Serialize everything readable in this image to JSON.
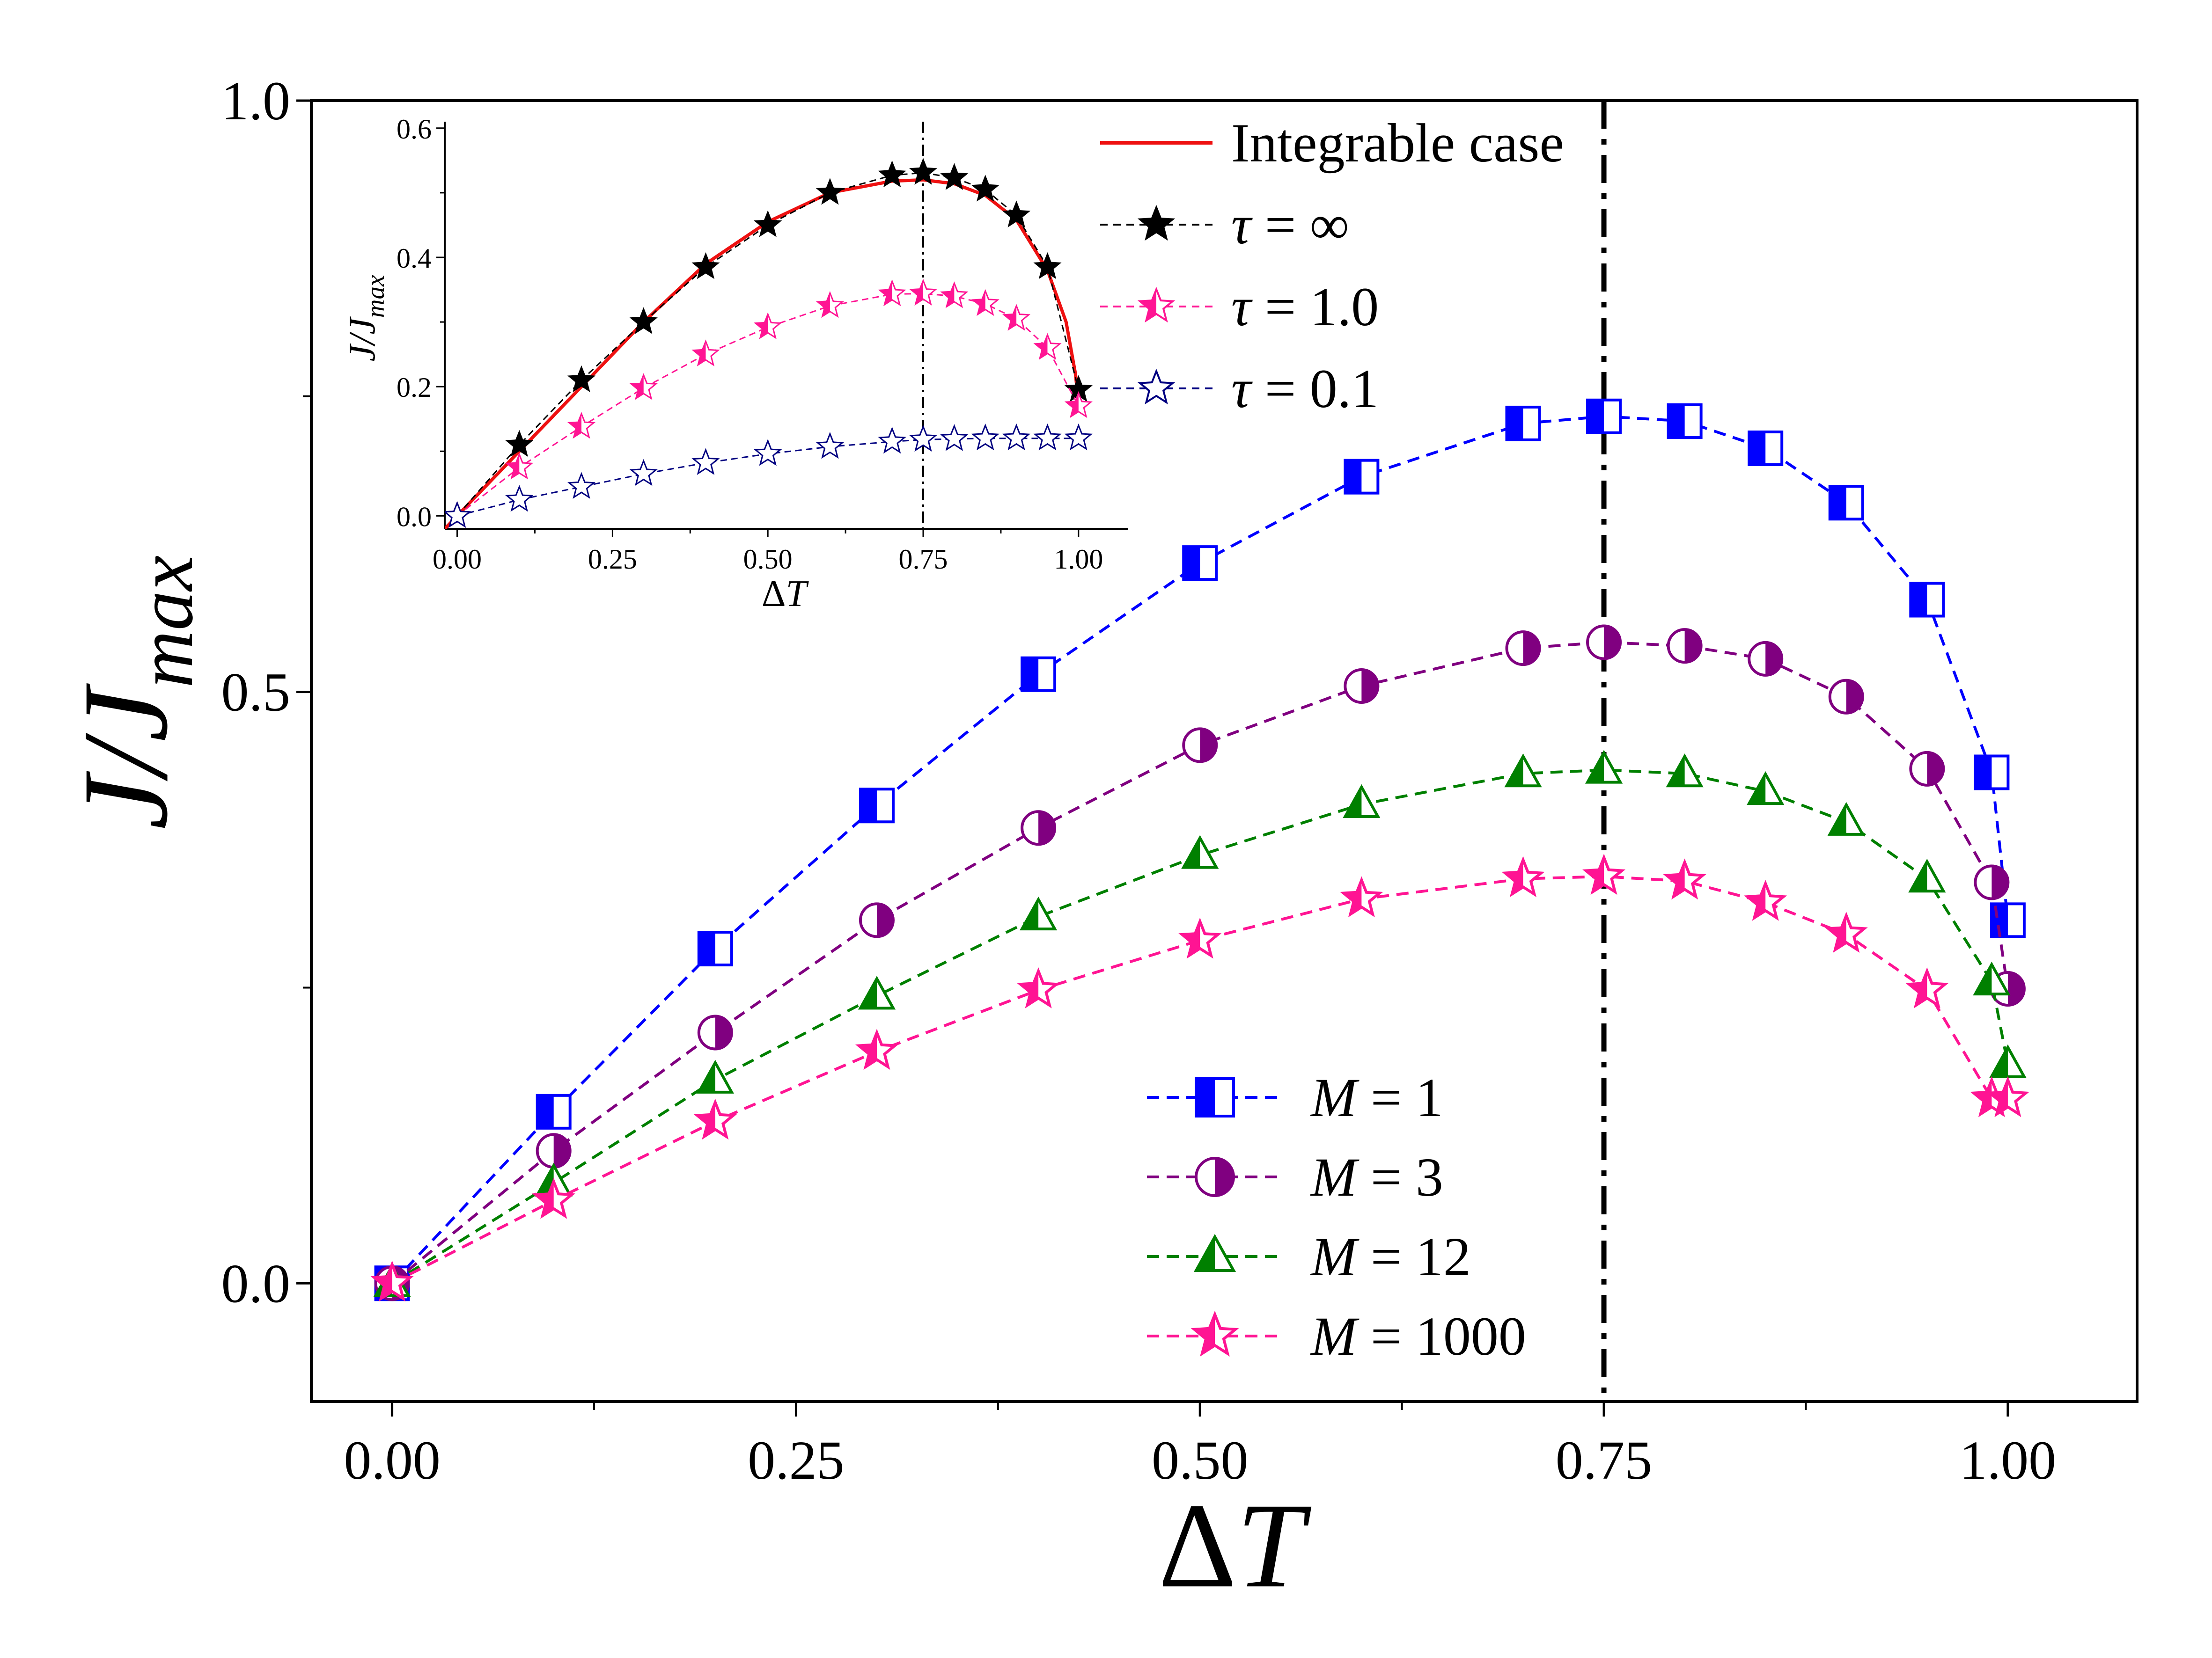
{
  "chart_data": [
    {
      "type": "line",
      "role": "main",
      "xlabel_symbol": "Δ",
      "xlabel_var": "T",
      "ylabel_main": "J/J",
      "ylabel_sub": "max",
      "xlim": [
        -0.05,
        1.08
      ],
      "ylim": [
        -0.1,
        1.0
      ],
      "xticks": [
        0.0,
        0.25,
        0.5,
        0.75,
        1.0
      ],
      "xtick_labels": [
        "0.00",
        "0.25",
        "0.50",
        "0.75",
        "1.00"
      ],
      "yticks": [
        0.0,
        0.5,
        1.0
      ],
      "ytick_labels": [
        "0.0",
        "0.5",
        "1.0"
      ],
      "vline_x": 0.75,
      "legend_position": "lower-right",
      "series": [
        {
          "name": "M = 1",
          "label_var": "M",
          "label_rest": " = 1",
          "color": "#0000ff",
          "marker": "half-square",
          "x": [
            0.0,
            0.1,
            0.2,
            0.3,
            0.4,
            0.5,
            0.6,
            0.7,
            0.75,
            0.8,
            0.85,
            0.9,
            0.95,
            0.99,
            1.0
          ],
          "y": [
            0.0,
            0.145,
            0.283,
            0.404,
            0.515,
            0.609,
            0.682,
            0.727,
            0.733,
            0.729,
            0.706,
            0.66,
            0.578,
            0.432,
            0.307
          ]
        },
        {
          "name": "M = 3",
          "label_var": "M",
          "label_rest": " = 3",
          "color": "#800080",
          "marker": "half-circle",
          "x": [
            0.0,
            0.1,
            0.2,
            0.3,
            0.4,
            0.5,
            0.6,
            0.7,
            0.75,
            0.8,
            0.85,
            0.9,
            0.95,
            0.99,
            1.0
          ],
          "y": [
            0.0,
            0.112,
            0.212,
            0.307,
            0.385,
            0.455,
            0.505,
            0.537,
            0.542,
            0.539,
            0.528,
            0.496,
            0.435,
            0.339,
            0.249
          ]
        },
        {
          "name": "M = 12",
          "label_var": "M",
          "label_rest": " = 12",
          "color": "#008000",
          "marker": "half-triangle",
          "x": [
            0.0,
            0.1,
            0.2,
            0.3,
            0.4,
            0.5,
            0.6,
            0.7,
            0.75,
            0.8,
            0.85,
            0.9,
            0.95,
            0.99,
            1.0
          ],
          "y": [
            0.0,
            0.085,
            0.172,
            0.243,
            0.31,
            0.362,
            0.405,
            0.431,
            0.434,
            0.431,
            0.416,
            0.39,
            0.342,
            0.255,
            0.185
          ]
        },
        {
          "name": "M = 1000",
          "label_var": "M",
          "label_rest": " = 1000",
          "color": "#ff1493",
          "marker": "half-star",
          "x": [
            0.0,
            0.1,
            0.2,
            0.3,
            0.4,
            0.5,
            0.6,
            0.7,
            0.75,
            0.8,
            0.85,
            0.9,
            0.95,
            0.99,
            1.0
          ],
          "y": [
            0.0,
            0.07,
            0.137,
            0.196,
            0.248,
            0.29,
            0.325,
            0.342,
            0.344,
            0.34,
            0.322,
            0.295,
            0.248,
            0.156,
            0.156
          ]
        }
      ]
    },
    {
      "type": "line",
      "role": "inset",
      "xlabel_symbol": "Δ",
      "xlabel_var": "T",
      "ylabel_main": "J/J",
      "ylabel_sub": "max",
      "xlim": [
        -0.02,
        1.08
      ],
      "ylim": [
        -0.02,
        0.61
      ],
      "xticks": [
        0.0,
        0.25,
        0.5,
        0.75,
        1.0
      ],
      "xtick_labels": [
        "0.00",
        "0.25",
        "0.50",
        "0.75",
        "1.00"
      ],
      "yticks": [
        0.0,
        0.2,
        0.4,
        0.6
      ],
      "ytick_labels": [
        "0.0",
        "0.2",
        "0.4",
        "0.6"
      ],
      "vline_x": 0.75,
      "legend_position": "top-right",
      "series": [
        {
          "name": "Integrable case",
          "label_var": "",
          "label_rest": "Integrable case",
          "color": "#ee1111",
          "style": "solid",
          "x": [
            -0.02,
            0.1,
            0.2,
            0.3,
            0.4,
            0.5,
            0.6,
            0.7,
            0.75,
            0.8,
            0.85,
            0.9,
            0.95,
            0.98,
            0.995,
            1.0
          ],
          "y": [
            -0.02,
            0.1,
            0.2,
            0.3,
            0.39,
            0.455,
            0.5,
            0.518,
            0.52,
            0.514,
            0.496,
            0.458,
            0.38,
            0.3,
            0.22,
            0.175
          ]
        },
        {
          "name": "τ = ∞",
          "label_var": "τ",
          "label_rest": " = ∞",
          "color": "#000000",
          "style": "dashed",
          "marker": "filled-star",
          "x": [
            0.0,
            0.1,
            0.2,
            0.3,
            0.4,
            0.5,
            0.6,
            0.7,
            0.75,
            0.8,
            0.85,
            0.9,
            0.95,
            1.0
          ],
          "y": [
            0.0,
            0.11,
            0.21,
            0.3,
            0.385,
            0.45,
            0.5,
            0.527,
            0.531,
            0.523,
            0.505,
            0.465,
            0.385,
            0.195
          ]
        },
        {
          "name": "τ = 1.0",
          "label_var": "τ",
          "label_rest": " = 1.0",
          "color": "#ff1493",
          "style": "dashed",
          "marker": "half-star",
          "x": [
            0.0,
            0.1,
            0.2,
            0.3,
            0.4,
            0.5,
            0.6,
            0.7,
            0.75,
            0.8,
            0.85,
            0.9,
            0.95,
            1.0
          ],
          "y": [
            0.0,
            0.075,
            0.138,
            0.198,
            0.25,
            0.292,
            0.325,
            0.343,
            0.344,
            0.34,
            0.328,
            0.305,
            0.26,
            0.17
          ]
        },
        {
          "name": "τ = 0.1",
          "label_var": "τ",
          "label_rest": " = 0.1",
          "color": "#000080",
          "style": "dashed",
          "marker": "open-star",
          "x": [
            0.0,
            0.1,
            0.2,
            0.3,
            0.4,
            0.5,
            0.6,
            0.7,
            0.75,
            0.8,
            0.85,
            0.9,
            0.95,
            1.0
          ],
          "y": [
            0.0,
            0.025,
            0.045,
            0.065,
            0.082,
            0.096,
            0.107,
            0.115,
            0.118,
            0.119,
            0.12,
            0.12,
            0.12,
            0.12
          ]
        }
      ]
    }
  ]
}
